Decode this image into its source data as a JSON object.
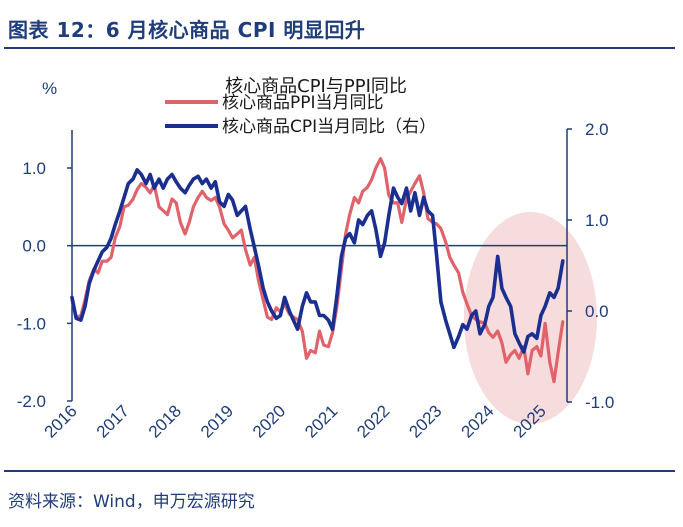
{
  "figure": {
    "title": "图表 12：6 月核心商品 CPI 明显回升",
    "source": "资料来源：Wind，申万宏源研究"
  },
  "chart_data": {
    "type": "line",
    "title": "核心商品CPI与PPI同比",
    "left_axis": {
      "unit_label": "%",
      "ylim": [
        -2.0,
        1.5
      ],
      "ticks": [
        1.0,
        0.0,
        -1.0,
        -2.0
      ],
      "tick_labels": [
        "1.0",
        "0.0",
        "-1.0",
        "-2.0"
      ]
    },
    "right_axis": {
      "ylim": [
        -1.0,
        2.0
      ],
      "ticks": [
        2.0,
        1.0,
        0.0,
        -1.0
      ],
      "tick_labels": [
        "2.0",
        "1.0",
        "0.0",
        "-1.0"
      ]
    },
    "x_range": [
      2016.0,
      2025.5
    ],
    "x_ticks": [
      2016,
      2017,
      2018,
      2019,
      2020,
      2021,
      2022,
      2023,
      2024,
      2025
    ],
    "x_tick_labels": [
      "2016",
      "2017",
      "2018",
      "2019",
      "2020",
      "2021",
      "2022",
      "2023",
      "2024",
      "2025"
    ],
    "highlight": {
      "shape": "ellipse",
      "color": "#f6dcdc",
      "x_range": [
        2023.75,
        2025.5
      ]
    },
    "series": [
      {
        "name": "核心商品PPI当月同比",
        "axis": "left",
        "color": "#e0636b",
        "x": [
          2016.0,
          2016.08,
          2016.17,
          2016.25,
          2016.33,
          2016.42,
          2016.5,
          2016.58,
          2016.67,
          2016.75,
          2016.83,
          2016.92,
          2017.0,
          2017.08,
          2017.17,
          2017.25,
          2017.33,
          2017.42,
          2017.5,
          2017.58,
          2017.67,
          2017.75,
          2017.83,
          2017.92,
          2018.0,
          2018.08,
          2018.17,
          2018.25,
          2018.33,
          2018.42,
          2018.5,
          2018.58,
          2018.67,
          2018.75,
          2018.83,
          2018.92,
          2019.0,
          2019.08,
          2019.17,
          2019.25,
          2019.33,
          2019.42,
          2019.5,
          2019.58,
          2019.67,
          2019.75,
          2019.83,
          2019.92,
          2020.0,
          2020.08,
          2020.17,
          2020.25,
          2020.33,
          2020.42,
          2020.5,
          2020.58,
          2020.67,
          2020.75,
          2020.83,
          2020.92,
          2021.0,
          2021.08,
          2021.17,
          2021.25,
          2021.33,
          2021.42,
          2021.5,
          2021.58,
          2021.67,
          2021.75,
          2021.83,
          2021.92,
          2022.0,
          2022.08,
          2022.17,
          2022.25,
          2022.33,
          2022.42,
          2022.5,
          2022.58,
          2022.67,
          2022.75,
          2022.83,
          2022.92,
          2023.0,
          2023.08,
          2023.17,
          2023.25,
          2023.33,
          2023.42,
          2023.5,
          2023.58,
          2023.67,
          2023.75,
          2023.83,
          2023.92,
          2024.0,
          2024.08,
          2024.17,
          2024.25,
          2024.33,
          2024.42,
          2024.5,
          2024.58,
          2024.67,
          2024.75,
          2024.83,
          2024.92,
          2025.0,
          2025.08,
          2025.17,
          2025.25,
          2025.33,
          2025.42
        ],
        "values": [
          -0.7,
          -0.92,
          -0.9,
          -0.7,
          -0.45,
          -0.3,
          -0.35,
          -0.2,
          -0.2,
          -0.15,
          0.1,
          0.25,
          0.5,
          0.52,
          0.6,
          0.72,
          0.8,
          0.75,
          0.68,
          0.78,
          0.5,
          0.45,
          0.4,
          0.6,
          0.55,
          0.3,
          0.15,
          0.3,
          0.5,
          0.62,
          0.7,
          0.62,
          0.58,
          0.62,
          0.5,
          0.28,
          0.2,
          0.1,
          0.15,
          0.2,
          -0.05,
          -0.25,
          -0.15,
          -0.45,
          -0.7,
          -0.92,
          -0.95,
          -0.8,
          -0.85,
          -0.75,
          -0.88,
          -0.92,
          -0.95,
          -1.1,
          -1.45,
          -1.35,
          -1.38,
          -1.1,
          -1.28,
          -1.3,
          -1.12,
          -0.8,
          -0.3,
          0.15,
          0.4,
          0.62,
          0.55,
          0.7,
          0.75,
          0.85,
          1.0,
          1.12,
          1.0,
          0.65,
          0.55,
          0.55,
          0.3,
          0.6,
          0.7,
          0.8,
          0.9,
          0.68,
          0.35,
          0.3,
          0.28,
          0.22,
          0.05,
          -0.15,
          -0.25,
          -0.35,
          -0.6,
          -0.75,
          -0.9,
          -0.95,
          -0.98,
          -1.0,
          -1.12,
          -1.18,
          -1.1,
          -1.25,
          -1.5,
          -1.4,
          -1.35,
          -1.45,
          -1.3,
          -1.65,
          -1.35,
          -1.3,
          -1.42,
          -1.0,
          -1.5,
          -1.75,
          -1.38,
          -0.98
        ]
      },
      {
        "name": "核心商品CPI当月同比（右）",
        "axis": "right",
        "color": "#1a2f8f",
        "x": [
          2016.0,
          2016.08,
          2016.17,
          2016.25,
          2016.33,
          2016.42,
          2016.5,
          2016.58,
          2016.67,
          2016.75,
          2016.83,
          2016.92,
          2017.0,
          2017.08,
          2017.17,
          2017.25,
          2017.33,
          2017.42,
          2017.5,
          2017.58,
          2017.67,
          2017.75,
          2017.83,
          2017.92,
          2018.0,
          2018.08,
          2018.17,
          2018.25,
          2018.33,
          2018.42,
          2018.5,
          2018.58,
          2018.67,
          2018.75,
          2018.83,
          2018.92,
          2019.0,
          2019.08,
          2019.17,
          2019.25,
          2019.33,
          2019.42,
          2019.5,
          2019.58,
          2019.67,
          2019.75,
          2019.83,
          2019.92,
          2020.0,
          2020.08,
          2020.17,
          2020.25,
          2020.33,
          2020.42,
          2020.5,
          2020.58,
          2020.67,
          2020.75,
          2020.83,
          2020.92,
          2021.0,
          2021.08,
          2021.17,
          2021.25,
          2021.33,
          2021.42,
          2021.5,
          2021.58,
          2021.67,
          2021.75,
          2021.83,
          2021.92,
          2022.0,
          2022.08,
          2022.17,
          2022.25,
          2022.33,
          2022.42,
          2022.5,
          2022.58,
          2022.67,
          2022.75,
          2022.83,
          2022.92,
          2023.0,
          2023.08,
          2023.17,
          2023.25,
          2023.33,
          2023.42,
          2023.5,
          2023.58,
          2023.67,
          2023.75,
          2023.83,
          2023.92,
          2024.0,
          2024.08,
          2024.17,
          2024.25,
          2024.33,
          2024.42,
          2024.5,
          2024.58,
          2024.67,
          2024.75,
          2024.83,
          2024.92,
          2025.0,
          2025.08,
          2025.17,
          2025.25,
          2025.33,
          2025.42
        ],
        "values": [
          0.15,
          -0.08,
          -0.1,
          0.05,
          0.3,
          0.45,
          0.55,
          0.65,
          0.7,
          0.8,
          0.95,
          1.1,
          1.25,
          1.4,
          1.45,
          1.55,
          1.5,
          1.4,
          1.5,
          1.35,
          1.45,
          1.35,
          1.45,
          1.5,
          1.42,
          1.35,
          1.3,
          1.38,
          1.45,
          1.48,
          1.4,
          1.45,
          1.35,
          1.42,
          1.2,
          1.15,
          1.28,
          1.22,
          1.05,
          1.1,
          1.15,
          0.9,
          0.7,
          0.5,
          0.25,
          0.1,
          0.0,
          -0.08,
          -0.05,
          0.15,
          0.0,
          -0.1,
          -0.2,
          0.05,
          0.2,
          0.1,
          0.1,
          -0.05,
          -0.05,
          -0.1,
          -0.2,
          0.15,
          0.6,
          0.8,
          0.85,
          0.75,
          1.0,
          0.95,
          1.05,
          1.1,
          0.9,
          0.6,
          0.75,
          1.05,
          1.35,
          1.25,
          1.18,
          1.35,
          1.1,
          1.3,
          1.05,
          1.25,
          1.1,
          1.05,
          0.6,
          0.1,
          -0.1,
          -0.25,
          -0.4,
          -0.28,
          -0.15,
          -0.2,
          -0.05,
          0.0,
          -0.25,
          -0.15,
          0.05,
          0.15,
          0.6,
          0.25,
          0.15,
          0.05,
          -0.25,
          -0.35,
          -0.45,
          -0.28,
          -0.25,
          -0.3,
          -0.05,
          0.05,
          0.2,
          0.15,
          0.25,
          0.55
        ]
      }
    ]
  }
}
